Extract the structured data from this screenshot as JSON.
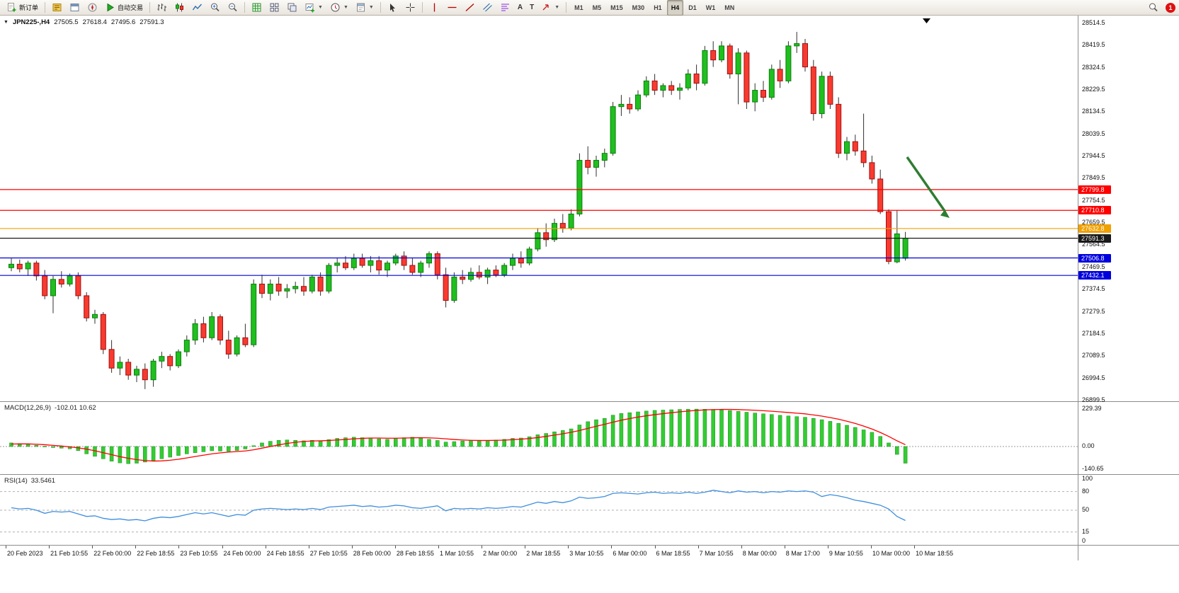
{
  "toolbar": {
    "new_order_label": "新订单",
    "autotrading_label": "自动交易",
    "text_tool_label": "A",
    "label_tool_label": "T",
    "timeframes": [
      "M1",
      "M5",
      "M15",
      "M30",
      "H1",
      "H4",
      "D1",
      "W1",
      "MN"
    ],
    "active_timeframe": "H4",
    "notification_count": "1"
  },
  "icons": {
    "new-order-icon": "document-plus",
    "market-watch-icon": "yellow-ledger",
    "data-window-icon": "window",
    "navigator-icon": "compass-needle",
    "autotrading-play-icon": "green-play-triangle",
    "bars-chart-icon": "ohlc-bars",
    "candlestick-chart-icon": "two-candles",
    "line-chart-icon": "zigzag-line",
    "zoom-in-icon": "magnifier-plus",
    "zoom-out-icon": "magnifier-minus",
    "indicators-icon": "green-grid",
    "tile-windows-icon": "four-tiles",
    "cascade-windows-icon": "stacked-windows",
    "new-chart-icon": "chart-plus",
    "periods-icon": "clock",
    "templates-icon": "chart-template",
    "cursor-icon": "pointer-arrow",
    "crosshair-icon": "crosshair",
    "vertical-line-icon": "vertical-line",
    "horizontal-line-icon": "horizontal-line",
    "trendline-icon": "diagonal-line",
    "channel-icon": "parallel-lines",
    "fibonacci-icon": "fibonacci-levels",
    "text-icon": "letter-A",
    "label-icon": "letter-T",
    "arrows-icon": "arrow-shapes",
    "search-icon": "magnifier",
    "notification-badge": "red-circle-count",
    "chart-menu-icon": "down-triangle",
    "scroll-to-end-marker": "black-down-triangle"
  },
  "chart": {
    "symbol": "JPN225-,H4",
    "ohlc": {
      "open": "27505.5",
      "high": "27618.4",
      "low": "27495.6",
      "close": "27591.3"
    },
    "tick_labels": [
      "28514.5",
      "28419.5",
      "28324.5",
      "28229.5",
      "28134.5",
      "28039.5",
      "27944.5",
      "27849.5",
      "27754.5",
      "27659.5",
      "27564.5",
      "27469.5",
      "27374.5",
      "27279.5",
      "27184.5",
      "27089.5",
      "26994.5",
      "26899.5"
    ],
    "hlines": [
      {
        "name": "resistance-line-upper",
        "label": "27799.8",
        "value": 27799.8,
        "color": "#ff0000"
      },
      {
        "name": "resistance-line-lower",
        "label": "27710.8",
        "value": 27710.8,
        "color": "#ff0000"
      },
      {
        "name": "orange-level-line",
        "label": "27632.8",
        "value": 27632.8,
        "color": "#f0a000"
      },
      {
        "name": "current-price-line",
        "label": "27591.3",
        "value": 27591.3,
        "color": "#1a1a1a"
      },
      {
        "name": "support-line-upper",
        "label": "27506.8",
        "value": 27506.8,
        "color": "#0000dd"
      },
      {
        "name": "support-line-lower",
        "label": "27432.1",
        "value": 27432.1,
        "color": "#0000dd"
      }
    ],
    "candles": [
      [
        27465,
        27505,
        27450,
        27480
      ],
      [
        27480,
        27500,
        27445,
        27460
      ],
      [
        27460,
        27495,
        27430,
        27485
      ],
      [
        27485,
        27495,
        27410,
        27430
      ],
      [
        27430,
        27455,
        27330,
        27345
      ],
      [
        27345,
        27430,
        27270,
        27415
      ],
      [
        27415,
        27450,
        27380,
        27395
      ],
      [
        27395,
        27440,
        27385,
        27430
      ],
      [
        27430,
        27445,
        27330,
        27345
      ],
      [
        27345,
        27360,
        27235,
        27250
      ],
      [
        27250,
        27285,
        27225,
        27265
      ],
      [
        27265,
        27275,
        27095,
        27115
      ],
      [
        27115,
        27155,
        27015,
        27035
      ],
      [
        27035,
        27085,
        27005,
        27060
      ],
      [
        27060,
        27075,
        26985,
        27005
      ],
      [
        27005,
        27045,
        26975,
        27030
      ],
      [
        27030,
        27055,
        26945,
        26985
      ],
      [
        26985,
        27075,
        26955,
        27065
      ],
      [
        27065,
        27105,
        27035,
        27085
      ],
      [
        27085,
        27095,
        27025,
        27045
      ],
      [
        27045,
        27115,
        27035,
        27105
      ],
      [
        27105,
        27175,
        27085,
        27155
      ],
      [
        27155,
        27245,
        27135,
        27225
      ],
      [
        27225,
        27255,
        27145,
        27165
      ],
      [
        27165,
        27275,
        27155,
        27255
      ],
      [
        27255,
        27265,
        27135,
        27155
      ],
      [
        27155,
        27195,
        27075,
        27095
      ],
      [
        27095,
        27175,
        27085,
        27165
      ],
      [
        27165,
        27225,
        27125,
        27135
      ],
      [
        27135,
        27415,
        27125,
        27395
      ],
      [
        27395,
        27435,
        27335,
        27355
      ],
      [
        27355,
        27415,
        27325,
        27395
      ],
      [
        27395,
        27425,
        27345,
        27365
      ],
      [
        27365,
        27395,
        27335,
        27375
      ],
      [
        27375,
        27405,
        27355,
        27385
      ],
      [
        27385,
        27425,
        27345,
        27365
      ],
      [
        27365,
        27435,
        27355,
        27425
      ],
      [
        27425,
        27445,
        27345,
        27365
      ],
      [
        27365,
        27485,
        27355,
        27475
      ],
      [
        27475,
        27505,
        27445,
        27485
      ],
      [
        27485,
        27515,
        27455,
        27465
      ],
      [
        27465,
        27525,
        27455,
        27505
      ],
      [
        27505,
        27525,
        27465,
        27475
      ],
      [
        27475,
        27515,
        27445,
        27495
      ],
      [
        27495,
        27515,
        27435,
        27455
      ],
      [
        27455,
        27495,
        27425,
        27485
      ],
      [
        27485,
        27525,
        27475,
        27515
      ],
      [
        27515,
        27535,
        27455,
        27475
      ],
      [
        27475,
        27505,
        27435,
        27445
      ],
      [
        27445,
        27495,
        27425,
        27485
      ],
      [
        27485,
        27535,
        27465,
        27525
      ],
      [
        27525,
        27535,
        27415,
        27435
      ],
      [
        27435,
        27465,
        27295,
        27325
      ],
      [
        27325,
        27445,
        27315,
        27425
      ],
      [
        27425,
        27455,
        27395,
        27415
      ],
      [
        27415,
        27465,
        27405,
        27445
      ],
      [
        27445,
        27475,
        27415,
        27425
      ],
      [
        27425,
        27465,
        27395,
        27455
      ],
      [
        27455,
        27475,
        27425,
        27435
      ],
      [
        27435,
        27485,
        27425,
        27475
      ],
      [
        27475,
        27525,
        27455,
        27505
      ],
      [
        27505,
        27535,
        27465,
        27485
      ],
      [
        27485,
        27555,
        27475,
        27545
      ],
      [
        27545,
        27635,
        27535,
        27615
      ],
      [
        27615,
        27655,
        27555,
        27585
      ],
      [
        27585,
        27675,
        27575,
        27655
      ],
      [
        27655,
        27695,
        27615,
        27635
      ],
      [
        27635,
        27715,
        27625,
        27695
      ],
      [
        27695,
        27955,
        27685,
        27925
      ],
      [
        27925,
        27985,
        27865,
        27895
      ],
      [
        27895,
        27945,
        27855,
        27925
      ],
      [
        27925,
        27975,
        27895,
        27955
      ],
      [
        27955,
        28175,
        27945,
        28155
      ],
      [
        28155,
        28205,
        28115,
        28165
      ],
      [
        28165,
        28195,
        28125,
        28145
      ],
      [
        28145,
        28225,
        28135,
        28205
      ],
      [
        28205,
        28285,
        28195,
        28265
      ],
      [
        28265,
        28295,
        28205,
        28225
      ],
      [
        28225,
        28255,
        28195,
        28245
      ],
      [
        28245,
        28265,
        28205,
        28225
      ],
      [
        28225,
        28255,
        28185,
        28235
      ],
      [
        28235,
        28315,
        28225,
        28295
      ],
      [
        28295,
        28335,
        28225,
        28255
      ],
      [
        28255,
        28415,
        28245,
        28395
      ],
      [
        28395,
        28435,
        28325,
        28355
      ],
      [
        28355,
        28435,
        28345,
        28415
      ],
      [
        28415,
        28425,
        28275,
        28295
      ],
      [
        28295,
        28405,
        28165,
        28385
      ],
      [
        28385,
        28395,
        28145,
        28175
      ],
      [
        28175,
        28255,
        28135,
        28225
      ],
      [
        28225,
        28265,
        28175,
        28195
      ],
      [
        28195,
        28335,
        28185,
        28315
      ],
      [
        28315,
        28355,
        28235,
        28265
      ],
      [
        28265,
        28435,
        28255,
        28415
      ],
      [
        28415,
        28475,
        28385,
        28425
      ],
      [
        28425,
        28445,
        28305,
        28325
      ],
      [
        28325,
        28355,
        28095,
        28125
      ],
      [
        28125,
        28305,
        28105,
        28285
      ],
      [
        28285,
        28305,
        28145,
        28165
      ],
      [
        28165,
        28195,
        27935,
        27955
      ],
      [
        27955,
        28025,
        27925,
        28005
      ],
      [
        28005,
        28035,
        27945,
        27965
      ],
      [
        27965,
        28125,
        27895,
        27915
      ],
      [
        27915,
        27945,
        27825,
        27845
      ],
      [
        27845,
        27885,
        27695,
        27705
      ],
      [
        27705,
        27715,
        27480,
        27492
      ],
      [
        27490,
        27712,
        27484,
        27610
      ],
      [
        27505.5,
        27618.4,
        27495.6,
        27591.3
      ]
    ]
  },
  "macd": {
    "title": "MACD(12,26,9)",
    "value_text": "-102.01 10.62",
    "axis_labels": [
      "229.39",
      "0.00",
      "-140.65"
    ],
    "histogram": [
      22,
      18,
      14,
      8,
      2,
      -6,
      -10,
      -14,
      -25,
      -45,
      -60,
      -75,
      -90,
      -100,
      -105,
      -102,
      -95,
      -85,
      -75,
      -65,
      -55,
      -45,
      -38,
      -32,
      -26,
      -28,
      -30,
      -24,
      -15,
      5,
      22,
      32,
      38,
      40,
      38,
      35,
      38,
      33,
      42,
      50,
      54,
      57,
      54,
      52,
      47,
      44,
      50,
      54,
      57,
      52,
      44,
      37,
      27,
      30,
      34,
      37,
      35,
      37,
      40,
      44,
      50,
      52,
      60,
      72,
      80,
      90,
      98,
      108,
      132,
      152,
      164,
      172,
      192,
      202,
      207,
      212,
      217,
      221,
      223,
      225,
      227,
      228,
      229,
      228,
      226,
      224,
      220,
      215,
      210,
      205,
      200,
      196,
      191,
      187,
      183,
      179,
      172,
      164,
      154,
      142,
      130,
      117,
      102,
      87,
      62,
      22,
      -48,
      -102
    ],
    "signal": [
      15,
      16,
      16,
      14,
      11,
      7,
      3,
      -2,
      -8,
      -16,
      -26,
      -38,
      -50,
      -62,
      -72,
      -80,
      -86,
      -89,
      -88,
      -84,
      -78,
      -70,
      -61,
      -53,
      -45,
      -39,
      -34,
      -31,
      -27,
      -20,
      -10,
      0,
      10,
      19,
      26,
      31,
      34,
      35,
      37,
      40,
      43,
      47,
      50,
      52,
      52,
      51,
      51,
      52,
      53,
      54,
      53,
      51,
      47,
      43,
      40,
      38,
      37,
      37,
      38,
      39,
      42,
      45,
      49,
      55,
      62,
      70,
      78,
      87,
      98,
      111,
      124,
      136,
      149,
      161,
      171,
      180,
      188,
      195,
      201,
      207,
      212,
      217,
      221,
      224,
      226,
      227,
      227,
      226,
      224,
      222,
      219,
      216,
      212,
      208,
      204,
      200,
      193,
      186,
      177,
      167,
      155,
      141,
      125,
      107,
      86,
      62,
      35,
      11
    ]
  },
  "rsi": {
    "title": "RSI(14)",
    "value_text": "33.5461",
    "axis_labels": [
      "100",
      "80",
      "50",
      "15",
      "0"
    ],
    "levels": [
      80,
      50,
      15
    ],
    "values": [
      54,
      52,
      53,
      50,
      45,
      48,
      47,
      48,
      44,
      40,
      41,
      37,
      35,
      36,
      34,
      35,
      33,
      37,
      39,
      38,
      40,
      43,
      46,
      44,
      46,
      43,
      40,
      43,
      42,
      50,
      52,
      53,
      52,
      51,
      52,
      51,
      53,
      51,
      55,
      56,
      57,
      58,
      56,
      57,
      55,
      56,
      58,
      57,
      54,
      53,
      55,
      57,
      49,
      53,
      52,
      53,
      52,
      54,
      53,
      54,
      56,
      55,
      59,
      63,
      61,
      64,
      62,
      65,
      71,
      69,
      70,
      72,
      77,
      78,
      77,
      76,
      78,
      79,
      77,
      78,
      77,
      79,
      77,
      79,
      82,
      80,
      78,
      81,
      79,
      80,
      78,
      80,
      79,
      81,
      80,
      81,
      79,
      72,
      75,
      73,
      70,
      66,
      64,
      61,
      58,
      52,
      40,
      33.5
    ],
    "value_end": 33.5461
  },
  "time_axis": [
    "20 Feb 2023",
    "21 Feb 10:55",
    "22 Feb 00:00",
    "22 Feb 18:55",
    "23 Feb 10:55",
    "24 Feb 00:00",
    "24 Feb 18:55",
    "27 Feb 10:55",
    "28 Feb 00:00",
    "28 Feb 18:55",
    "1 Mar 10:55",
    "2 Mar 00:00",
    "2 Mar 18:55",
    "3 Mar 10:55",
    "6 Mar 00:00",
    "6 Mar 18:55",
    "7 Mar 10:55",
    "8 Mar 00:00",
    "8 Mar 17:00",
    "9 Mar 10:55",
    "10 Mar 00:00",
    "10 Mar 18:55"
  ],
  "colors": {
    "bull": "#1fbf1f",
    "bull_border": "#0a800a",
    "bear": "#f93a2f",
    "bear_border": "#a01010",
    "wick": "#303030",
    "macd_bar": "#32cd32",
    "macd_bar_border": "#1c8c1c",
    "macd_signal": "#ff0000",
    "rsi_line": "#3e8ede",
    "arrow": "#2e7d32",
    "level_dash": "#b0b0b0"
  }
}
